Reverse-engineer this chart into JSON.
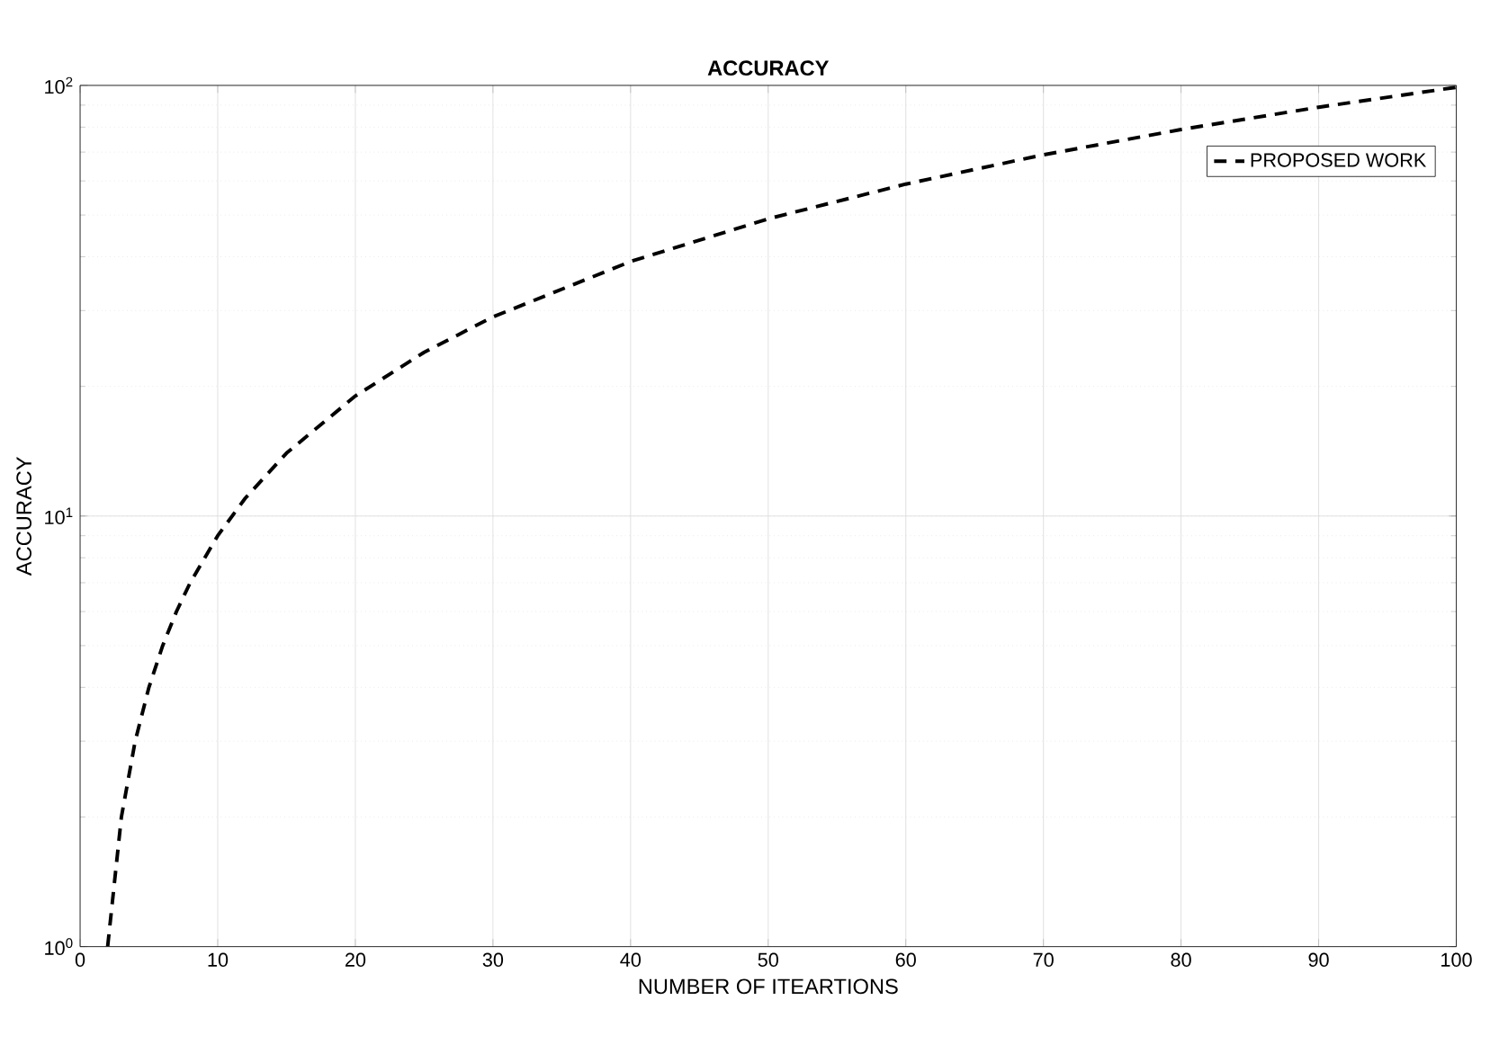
{
  "chart_data": {
    "type": "line",
    "title": "ACCURACY",
    "xlabel": "NUMBER OF ITEARTIONS",
    "ylabel": "ACCURACY",
    "x": [
      2,
      3,
      4,
      5,
      6,
      7,
      8,
      10,
      12,
      15,
      20,
      25,
      30,
      40,
      50,
      60,
      70,
      80,
      90,
      100
    ],
    "series": [
      {
        "name": "PROPOSED WORK",
        "color": "#000000",
        "line_style": "dashed",
        "values": [
          1,
          2,
          3,
          4,
          5,
          6,
          7,
          9,
          11,
          14,
          19,
          24,
          29,
          39,
          49,
          59,
          69,
          79,
          89,
          99
        ]
      }
    ],
    "xlim": [
      0,
      100
    ],
    "xticks": [
      0,
      10,
      20,
      30,
      40,
      50,
      60,
      70,
      80,
      90,
      100
    ],
    "ylim": [
      1,
      100
    ],
    "yticks": [
      {
        "value": 1,
        "label": "10$^{0}$"
      },
      {
        "value": 10,
        "label": "10$^{1}$"
      },
      {
        "value": 100,
        "label": "10$^{2}$"
      }
    ],
    "log": "y",
    "grid": true,
    "legend": "top right",
    "marker": "none"
  }
}
